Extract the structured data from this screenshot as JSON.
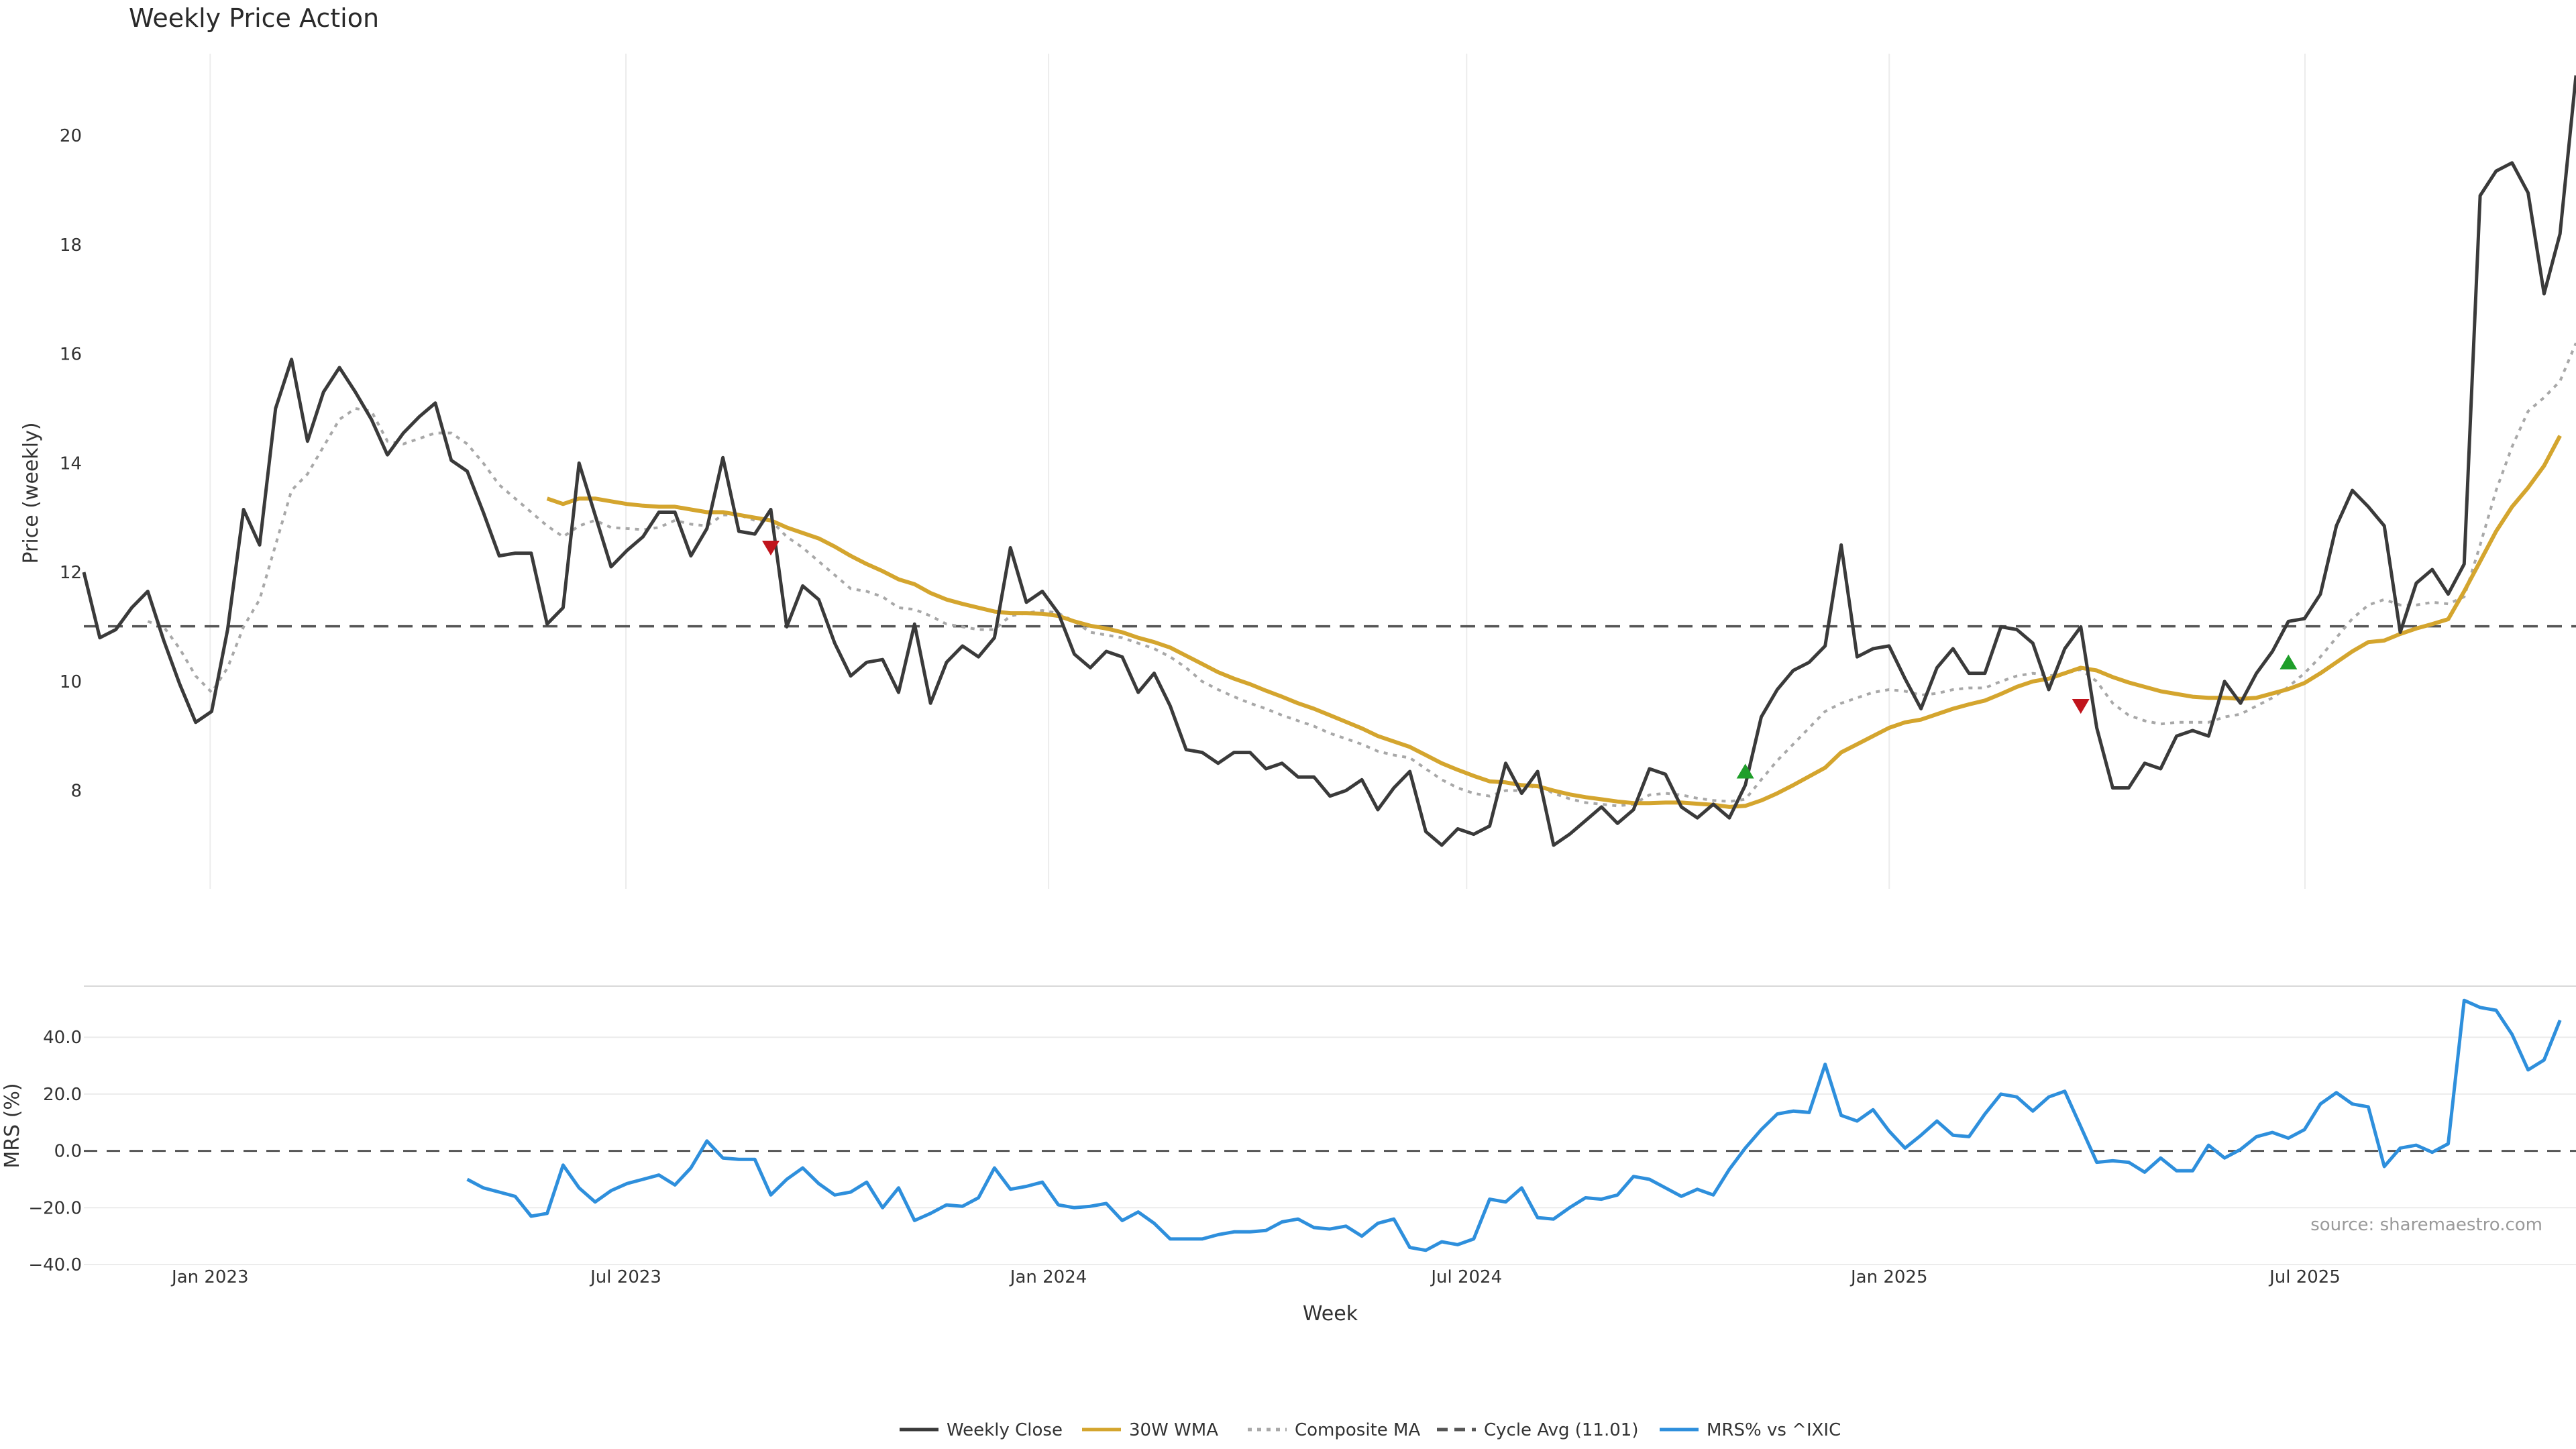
{
  "chart_data": {
    "type": "line",
    "title": "Weekly Price Action",
    "xlabel": "Week",
    "x_start": "2022-11-07",
    "x_tick_labels": [
      "Jan 2023",
      "Jul 2023",
      "Jan 2024",
      "Jul 2024",
      "Jan 2025",
      "Jul 2025"
    ],
    "x_tick_dates": [
      "2023-01-01",
      "2023-07-01",
      "2024-01-01",
      "2024-07-01",
      "2025-01-01",
      "2025-07-01"
    ],
    "x_range": [
      "2022-11-07",
      "2025-10-27"
    ],
    "source": "source: sharemaestro.com",
    "price_panel": {
      "ylabel": "Price (weekly)",
      "ylim": [
        6.2,
        21.5
      ],
      "y_ticks": [
        8,
        10,
        12,
        14,
        16,
        18,
        20
      ],
      "grid": "vertical only",
      "cycle_avg": 11.01,
      "weekly_close": [
        12.0,
        10.8,
        10.95,
        11.35,
        11.65,
        10.75,
        9.95,
        9.25,
        9.45,
        10.95,
        13.15,
        12.5,
        15.0,
        15.9,
        14.4,
        15.3,
        15.75,
        15.3,
        14.8,
        14.15,
        14.55,
        14.85,
        15.1,
        14.05,
        13.85,
        13.1,
        12.3,
        12.35,
        12.35,
        11.05,
        11.35,
        14.0,
        13.05,
        12.1,
        12.4,
        12.65,
        13.1,
        13.1,
        12.3,
        12.8,
        14.1,
        12.75,
        12.7,
        13.15,
        11.0,
        11.75,
        11.5,
        10.7,
        10.1,
        10.35,
        10.4,
        9.8,
        11.05,
        9.6,
        10.35,
        10.65,
        10.45,
        10.8,
        12.45,
        11.45,
        11.65,
        11.25,
        10.5,
        10.25,
        10.55,
        10.45,
        9.8,
        10.15,
        9.55,
        8.75,
        8.7,
        8.5,
        8.7,
        8.7,
        8.4,
        8.5,
        8.25,
        8.25,
        7.9,
        8.0,
        8.2,
        7.65,
        8.05,
        8.35,
        7.25,
        7.0,
        7.3,
        7.2,
        7.35,
        8.5,
        7.95,
        8.35,
        7.0,
        7.2,
        7.45,
        7.7,
        7.4,
        7.65,
        8.4,
        8.3,
        7.7,
        7.5,
        7.75,
        7.5,
        8.1,
        9.35,
        9.85,
        10.2,
        10.35,
        10.65,
        12.5,
        10.45,
        10.6,
        10.65,
        10.05,
        9.5,
        10.25,
        10.6,
        10.15,
        10.15,
        11.0,
        10.95,
        10.7,
        9.85,
        10.6,
        11.0,
        9.15,
        8.05,
        8.05,
        8.5,
        8.4,
        9.0,
        9.1,
        9.0,
        10.0,
        9.6,
        10.15,
        10.55,
        11.1,
        11.15,
        11.6,
        12.85,
        13.5,
        13.2,
        12.85,
        10.9,
        11.8,
        12.05,
        11.6,
        12.15,
        18.9,
        19.35,
        19.5,
        18.95,
        17.1,
        18.2,
        21.1
      ],
      "wma_30w": [
        null,
        null,
        null,
        null,
        null,
        null,
        null,
        null,
        null,
        null,
        null,
        null,
        null,
        null,
        null,
        null,
        null,
        null,
        null,
        null,
        null,
        null,
        null,
        null,
        null,
        null,
        null,
        null,
        null,
        13.35,
        13.25,
        13.35,
        13.35,
        13.3,
        13.25,
        13.22,
        13.2,
        13.2,
        13.15,
        13.1,
        13.1,
        13.05,
        13.0,
        12.95,
        12.82,
        12.72,
        12.62,
        12.47,
        12.3,
        12.15,
        12.02,
        11.87,
        11.78,
        11.62,
        11.5,
        11.42,
        11.35,
        11.28,
        11.25,
        11.25,
        11.24,
        11.2,
        11.1,
        11.02,
        10.97,
        10.9,
        10.8,
        10.72,
        10.62,
        10.47,
        10.32,
        10.17,
        10.05,
        9.95,
        9.83,
        9.72,
        9.6,
        9.5,
        9.38,
        9.26,
        9.14,
        9.0,
        8.9,
        8.8,
        8.65,
        8.5,
        8.38,
        8.27,
        8.17,
        8.15,
        8.1,
        8.08,
        8.0,
        7.93,
        7.88,
        7.84,
        7.8,
        7.77,
        7.77,
        7.78,
        7.78,
        7.76,
        7.74,
        7.7,
        7.72,
        7.82,
        7.95,
        8.1,
        8.26,
        8.42,
        8.7,
        8.85,
        9.0,
        9.15,
        9.25,
        9.3,
        9.4,
        9.5,
        9.58,
        9.65,
        9.77,
        9.9,
        10.0,
        10.05,
        10.15,
        10.25,
        10.2,
        10.08,
        9.98,
        9.9,
        9.82,
        9.77,
        9.72,
        9.7,
        9.7,
        9.68,
        9.7,
        9.78,
        9.86,
        9.97,
        10.15,
        10.35,
        10.55,
        10.72,
        10.75,
        10.87,
        10.97,
        11.05,
        11.14,
        11.65,
        12.2,
        12.75,
        13.2,
        13.55,
        13.95,
        14.5
      ],
      "composite_ma": [
        null,
        null,
        null,
        null,
        11.1,
        11.0,
        10.6,
        10.1,
        9.8,
        10.25,
        11.0,
        11.5,
        12.5,
        13.5,
        13.8,
        14.3,
        14.8,
        15.0,
        14.95,
        14.4,
        14.35,
        14.45,
        14.55,
        14.55,
        14.35,
        14.0,
        13.6,
        13.35,
        13.1,
        12.85,
        12.65,
        12.85,
        12.95,
        12.82,
        12.8,
        12.78,
        12.82,
        12.95,
        12.88,
        12.85,
        13.05,
        13.05,
        12.95,
        12.95,
        12.65,
        12.45,
        12.2,
        11.95,
        11.7,
        11.65,
        11.55,
        11.35,
        11.32,
        11.2,
        11.05,
        11.0,
        10.95,
        10.95,
        11.2,
        11.25,
        11.3,
        11.25,
        11.1,
        10.9,
        10.85,
        10.8,
        10.7,
        10.6,
        10.45,
        10.25,
        10.0,
        9.85,
        9.72,
        9.6,
        9.5,
        9.38,
        9.28,
        9.18,
        9.05,
        8.95,
        8.85,
        8.72,
        8.65,
        8.6,
        8.4,
        8.2,
        8.05,
        7.95,
        7.9,
        8.0,
        8.0,
        8.1,
        7.95,
        7.85,
        7.78,
        7.75,
        7.72,
        7.75,
        7.92,
        7.95,
        7.92,
        7.86,
        7.82,
        7.8,
        7.84,
        8.2,
        8.55,
        8.85,
        9.15,
        9.45,
        9.6,
        9.7,
        9.8,
        9.85,
        9.82,
        9.75,
        9.78,
        9.85,
        9.88,
        9.88,
        10.0,
        10.1,
        10.15,
        10.1,
        10.15,
        10.22,
        10.0,
        9.6,
        9.38,
        9.28,
        9.22,
        9.25,
        9.25,
        9.25,
        9.35,
        9.4,
        9.55,
        9.7,
        9.9,
        10.15,
        10.45,
        10.8,
        11.15,
        11.4,
        11.5,
        11.4,
        11.4,
        11.45,
        11.42,
        11.55,
        12.5,
        13.5,
        14.3,
        14.95,
        15.2,
        15.5,
        16.2
      ],
      "markers": [
        {
          "week_index": 43,
          "value": 12.45,
          "direction": "down",
          "color": "#c0141c"
        },
        {
          "week_index": 104,
          "value": 8.35,
          "direction": "up",
          "color": "#1f9e2a"
        },
        {
          "week_index": 125,
          "value": 9.55,
          "direction": "down",
          "color": "#c0141c"
        },
        {
          "week_index": 138,
          "value": 10.35,
          "direction": "up",
          "color": "#1f9e2a"
        }
      ]
    },
    "mrs_panel": {
      "ylabel": "MRS (%)",
      "ylim": [
        -40,
        58
      ],
      "y_ticks": [
        -40,
        -20,
        0,
        20,
        40
      ],
      "y_tick_labels": [
        "−40.0",
        "−20.0",
        "0.0",
        "20.0",
        "40.0"
      ],
      "zero_line": 0,
      "mrs_pct": [
        null,
        null,
        null,
        null,
        null,
        null,
        null,
        null,
        null,
        null,
        null,
        null,
        null,
        null,
        null,
        null,
        null,
        null,
        null,
        null,
        null,
        null,
        null,
        null,
        -10,
        -13,
        -14.5,
        -16,
        -23,
        -22,
        -5,
        -13,
        -18,
        -14,
        -11.5,
        -10,
        -8.5,
        -12,
        -6,
        3.5,
        -2.5,
        -3,
        -3,
        -15.5,
        -10,
        -6,
        -11.5,
        -15.5,
        -14.5,
        -11,
        -20,
        -13,
        -24.5,
        -22,
        -19,
        -19.5,
        -16.5,
        -6,
        -13.5,
        -12.5,
        -11,
        -19,
        -20,
        -19.5,
        -18.5,
        -24.5,
        -21.5,
        -25.5,
        -31,
        -31,
        -31,
        -29.5,
        -28.5,
        -28.5,
        -28,
        -25,
        -24,
        -27,
        -27.5,
        -26.5,
        -30,
        -25.5,
        -24,
        -34,
        -35,
        -32,
        -33,
        -31,
        -17,
        -18,
        -13,
        -23.5,
        -24,
        -20,
        -16.5,
        -17,
        -15.5,
        -9,
        -10,
        -13,
        -16,
        -13.5,
        -15.5,
        -6.5,
        1,
        7.5,
        13,
        14,
        13.5,
        30.5,
        12.5,
        10.5,
        14.5,
        7,
        1,
        5.5,
        10.5,
        5.5,
        5,
        13,
        20,
        19,
        14,
        19,
        21,
        8.5,
        -4,
        -3.5,
        -4,
        -7.5,
        -2.5,
        -7,
        -7,
        2,
        -2.5,
        0.5,
        5,
        6.5,
        4.5,
        7.5,
        16.5,
        20.5,
        16.5,
        15.5,
        -5.5,
        1,
        2,
        -0.5,
        2.5,
        53,
        50.5,
        49.5,
        41,
        28.5,
        32,
        46
      ]
    },
    "legend": {
      "placement": "bottom-center",
      "entries": [
        {
          "label": "Weekly Close",
          "color": "#3a3a3a",
          "style": "solid"
        },
        {
          "label": "30W WMA",
          "color": "#d4a52e",
          "style": "solid"
        },
        {
          "label": "Composite MA",
          "color": "#a8a8a8",
          "style": "dotted"
        },
        {
          "label": "Cycle Avg (11.01)",
          "color": "#555555",
          "style": "dashed"
        },
        {
          "label": "MRS% vs ^IXIC",
          "color": "#2e8fdc",
          "style": "solid"
        }
      ]
    },
    "colors": {
      "close": "#3a3a3a",
      "wma": "#d4a52e",
      "composite": "#a8a8a8",
      "cycle": "#555555",
      "mrs": "#2e8fdc",
      "grid": "#ececec"
    }
  }
}
